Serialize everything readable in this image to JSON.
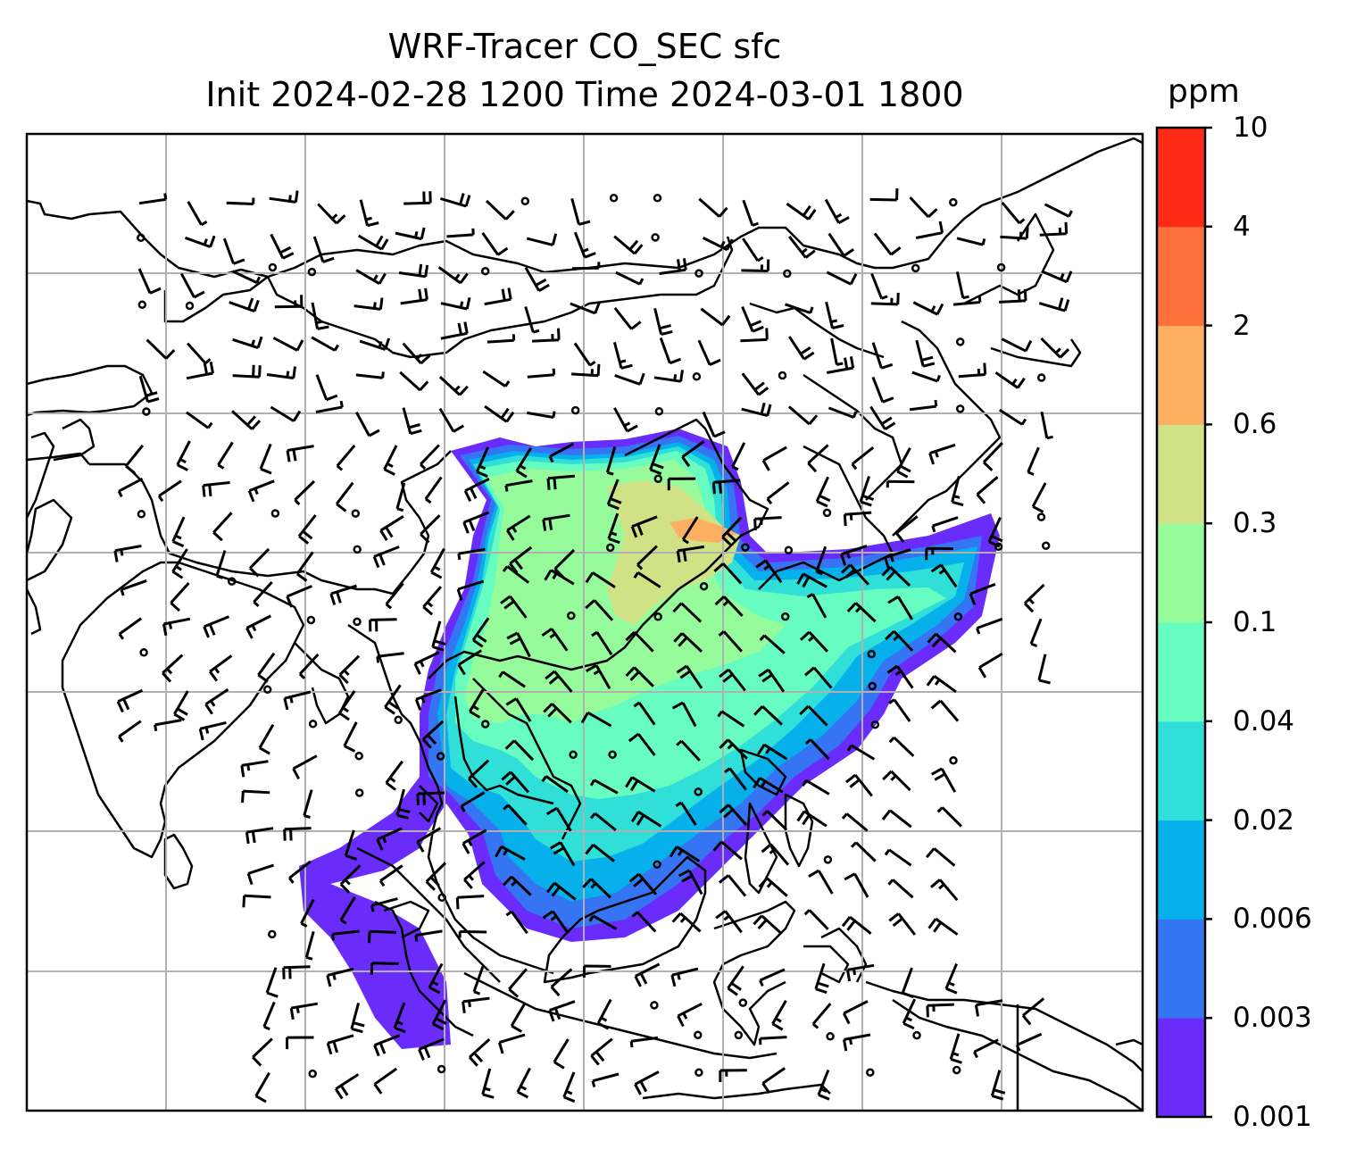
{
  "title_line1": "WRF-Tracer CO_SEC sfc",
  "title_line2": "Init 2024-02-28 1200 Time 2024-03-01 1800",
  "colorbar": {
    "unit": "ppm",
    "levels": [
      "0.001",
      "0.003",
      "0.006",
      "0.02",
      "0.04",
      "0.1",
      "0.3",
      "0.6",
      "2",
      "4",
      "10"
    ],
    "colors": [
      "#6a2cfb",
      "#3574f3",
      "#06b0ea",
      "#30e0d8",
      "#68fdc0",
      "#96fb9b",
      "#d1e286",
      "#feb062",
      "#fe713b",
      "#fe2a15"
    ]
  },
  "map": {
    "wind_barb_color": "#000000",
    "coastline_color": "#000000",
    "gridline_color": "#b0b0b0"
  }
}
